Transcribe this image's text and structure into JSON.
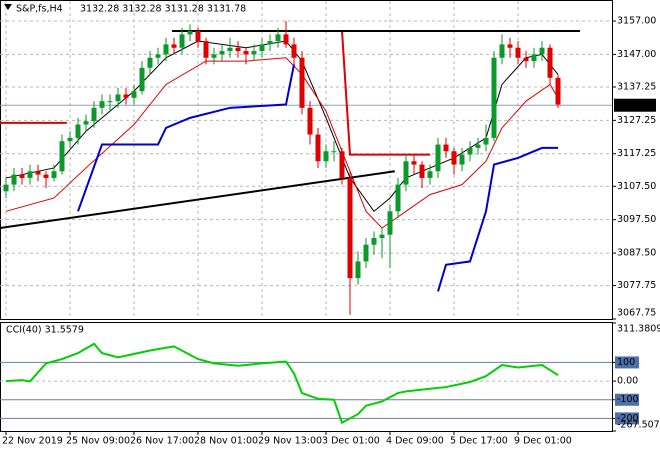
{
  "chart_data": [
    {
      "type": "candlestick",
      "title": "S&P,fs,H4",
      "ohlc": "3132.28 3132.28 3131.28 3131.78",
      "up_color": "#0a9a2a",
      "down_color": "#e00000",
      "grid": true,
      "xlim": [
        -0.75,
        75.75
      ],
      "ylim": [
        3067.75,
        3163
      ],
      "yticks": [
        {
          "value": 3157,
          "label": "3157.00"
        },
        {
          "value": 3147,
          "label": "3147.00"
        },
        3137.25,
        3127.25,
        3117.25,
        {
          "value": 3107.5,
          "label": "3107.50"
        },
        {
          "value": 3097.5,
          "label": "3097.50"
        },
        {
          "value": 3087.5,
          "label": "3087.50"
        },
        3077.75,
        3067.75
      ],
      "xticks": [
        {
          "value": 0,
          "label": "22 Nov 2019"
        },
        {
          "value": 8,
          "label": "25 Nov 09:00"
        },
        {
          "value": 16,
          "label": "26 Nov 17:00"
        },
        {
          "value": 24,
          "label": "28 Nov 01:00"
        },
        {
          "value": 32,
          "label": "29 Nov 13:00"
        },
        {
          "value": 40,
          "label": "3 Dec 01:00"
        },
        {
          "value": 48,
          "label": "4 Dec 09:00"
        },
        {
          "value": 56,
          "label": "5 Dec 17:00"
        },
        {
          "value": 64,
          "label": "9 Dec 01:00"
        }
      ],
      "last_price": 3131.78,
      "candles": [
        [
          3106,
          3110,
          3104,
          3108
        ],
        [
          3108,
          3113,
          3106,
          3111
        ],
        [
          3111,
          3113,
          3108,
          3110
        ],
        [
          3110,
          3114,
          3108,
          3112
        ],
        [
          3112,
          3114,
          3109,
          3111
        ],
        [
          3111,
          3112,
          3107,
          3110
        ],
        [
          3110,
          3114,
          3109,
          3112
        ],
        [
          3112,
          3123,
          3111,
          3121
        ],
        [
          3121,
          3124,
          3119,
          3122
        ],
        [
          3122,
          3128,
          3120,
          3126
        ],
        [
          3126,
          3129,
          3124,
          3127
        ],
        [
          3127,
          3133,
          3125,
          3131
        ],
        [
          3131,
          3135,
          3129,
          3133
        ],
        [
          3133,
          3135,
          3130,
          3133
        ],
        [
          3133,
          3137,
          3131,
          3135
        ],
        [
          3135,
          3137,
          3132,
          3134
        ],
        [
          3134,
          3138,
          3132,
          3136
        ],
        [
          3136,
          3145,
          3135,
          3143
        ],
        [
          3143,
          3148,
          3141,
          3146
        ],
        [
          3146,
          3149,
          3144,
          3147
        ],
        [
          3147,
          3152,
          3145,
          3150
        ],
        [
          3150,
          3152,
          3147,
          3149
        ],
        [
          3149,
          3155,
          3147,
          3153
        ],
        [
          3153,
          3156,
          3151,
          3154
        ],
        [
          3154,
          3155,
          3149,
          3151
        ],
        [
          3151,
          3152,
          3144,
          3146
        ],
        [
          3146,
          3149,
          3144,
          3147
        ],
        [
          3147,
          3150,
          3145,
          3148
        ],
        [
          3148,
          3152,
          3146,
          3149
        ],
        [
          3149,
          3151,
          3146,
          3148
        ],
        [
          3148,
          3149,
          3144,
          3147
        ],
        [
          3147,
          3150,
          3145,
          3148
        ],
        [
          3148,
          3152,
          3146,
          3150
        ],
        [
          3150,
          3153,
          3148,
          3151
        ],
        [
          3151,
          3155,
          3149,
          3153
        ],
        [
          3153,
          3157,
          3149,
          3150
        ],
        [
          3150,
          3152,
          3144,
          3146
        ],
        [
          3146,
          3148,
          3129,
          3131
        ],
        [
          3131,
          3133,
          3120,
          3123
        ],
        [
          3123,
          3125,
          3113,
          3115
        ],
        [
          3115,
          3120,
          3113,
          3118
        ],
        [
          3118,
          3121,
          3115,
          3118
        ],
        [
          3118,
          3119,
          3108,
          3110
        ],
        [
          3110,
          3112,
          3069,
          3080
        ],
        [
          3080,
          3088,
          3078,
          3085
        ],
        [
          3085,
          3092,
          3083,
          3090
        ],
        [
          3090,
          3094,
          3087,
          3092
        ],
        [
          3092,
          3095,
          3086,
          3093
        ],
        [
          3093,
          3102,
          3083,
          3100
        ],
        [
          3100,
          3110,
          3098,
          3108
        ],
        [
          3108,
          3117,
          3106,
          3115
        ],
        [
          3115,
          3117,
          3111,
          3114
        ],
        [
          3114,
          3115,
          3107,
          3110
        ],
        [
          3110,
          3114,
          3108,
          3112
        ],
        [
          3112,
          3122,
          3110,
          3120
        ],
        [
          3120,
          3122,
          3116,
          3118
        ],
        [
          3118,
          3119,
          3111,
          3114
        ],
        [
          3114,
          3119,
          3112,
          3117
        ],
        [
          3117,
          3121,
          3115,
          3119
        ],
        [
          3119,
          3122,
          3117,
          3120
        ],
        [
          3120,
          3126,
          3118,
          3122
        ],
        [
          3122,
          3148,
          3121,
          3146
        ],
        [
          3146,
          3153,
          3144,
          3150
        ],
        [
          3150,
          3152,
          3146,
          3149
        ],
        [
          3149,
          3151,
          3144,
          3146
        ],
        [
          3146,
          3148,
          3143,
          3145
        ],
        [
          3145,
          3149,
          3143,
          3147
        ],
        [
          3147,
          3151,
          3145,
          3149
        ],
        [
          3149,
          3150,
          3138,
          3140
        ],
        [
          3140,
          3141,
          3131,
          3132
        ]
      ],
      "lines": [
        {
          "color": "#000000",
          "width": 1,
          "points": [
            [
              0,
              3110
            ],
            [
              6,
              3113
            ],
            [
              10,
              3124
            ],
            [
              16,
              3136
            ],
            [
              20,
              3146
            ],
            [
              24,
              3151
            ],
            [
              30,
              3149
            ],
            [
              35,
              3151
            ],
            [
              37,
              3145
            ],
            [
              40,
              3128
            ],
            [
              43,
              3110
            ],
            [
              46,
              3100
            ],
            [
              48,
              3104
            ],
            [
              50,
              3110
            ],
            [
              53,
              3113
            ],
            [
              56,
              3116
            ],
            [
              60,
              3122
            ],
            [
              62,
              3138
            ],
            [
              65,
              3146
            ],
            [
              67,
              3147
            ],
            [
              69,
              3141
            ]
          ]
        },
        {
          "color": "#e00000",
          "width": 1,
          "points": [
            [
              0,
              3100
            ],
            [
              6,
              3104
            ],
            [
              10,
              3113
            ],
            [
              16,
              3126
            ],
            [
              20,
              3138
            ],
            [
              25,
              3145
            ],
            [
              30,
              3145
            ],
            [
              35,
              3146
            ],
            [
              37,
              3141
            ],
            [
              40,
              3130
            ],
            [
              42,
              3118
            ],
            [
              45,
              3100
            ],
            [
              47,
              3095
            ],
            [
              50,
              3100
            ],
            [
              53,
              3105
            ],
            [
              57,
              3108
            ],
            [
              60,
              3115
            ],
            [
              62,
              3125
            ],
            [
              65,
              3133
            ],
            [
              68,
              3138
            ],
            [
              69,
              3134
            ]
          ]
        },
        {
          "color": "#0000d0",
          "width": 2,
          "points": [
            [
              9,
              3100
            ],
            [
              12,
              3120
            ],
            [
              19,
              3120
            ],
            [
              20,
              3125
            ],
            [
              23,
              3128
            ],
            [
              28,
              3131
            ],
            [
              35,
              3132
            ],
            [
              36,
              3144
            ]
          ]
        },
        {
          "color": "#0000d0",
          "width": 2,
          "points": [
            [
              54,
              3076
            ],
            [
              55,
              3084
            ],
            [
              58,
              3085
            ],
            [
              60,
              3100
            ],
            [
              61,
              3114
            ],
            [
              64,
              3116
            ],
            [
              67,
              3119
            ],
            [
              69,
              3119
            ]
          ]
        },
        {
          "color": "#e00000",
          "width": 2,
          "points": [
            [
              -0.75,
              3126.5
            ],
            [
              7.6,
              3126.5
            ]
          ]
        },
        {
          "color": "#e00000",
          "width": 2,
          "points": [
            [
              35,
              3154
            ],
            [
              42,
              3154
            ],
            [
              43,
              3117
            ],
            [
              53,
              3117
            ]
          ]
        },
        {
          "color": "#000000",
          "width": 2,
          "points": [
            [
              20.75,
              3154
            ],
            [
              71.75,
              3154
            ]
          ]
        },
        {
          "color": "#000000",
          "width": 2,
          "points": [
            [
              -0.75,
              3095
            ],
            [
              48.6,
              3112
            ]
          ]
        }
      ]
    },
    {
      "type": "line",
      "title": "CCI(40) 31.5579",
      "color": "#00d000",
      "grid": true,
      "xlim": [
        -0.75,
        75.75
      ],
      "ylim": [
        -267.5076,
        311.3809
      ],
      "yticks": [
        311.3809,
        100,
        {
          "value": 0,
          "label": "0.00"
        },
        -100,
        -200,
        -267.5076
      ],
      "levels": [
        100,
        -100,
        -200
      ],
      "x": [
        0,
        2,
        3,
        5,
        7,
        9,
        11,
        12,
        14,
        18,
        21,
        24,
        26,
        29,
        32,
        35,
        36,
        37,
        39,
        41,
        42,
        44,
        45,
        47,
        49,
        50,
        53,
        55,
        58,
        60,
        62,
        64,
        67,
        68,
        69
      ],
      "values": [
        0,
        5,
        -2,
        95,
        118,
        150,
        200,
        150,
        127,
        164,
        186,
        118,
        95,
        82,
        95,
        105,
        41,
        -64,
        -95,
        -100,
        -223,
        -177,
        -132,
        -109,
        -64,
        -55,
        -41,
        -32,
        -5,
        27,
        86,
        73,
        86,
        59,
        32
      ]
    }
  ]
}
